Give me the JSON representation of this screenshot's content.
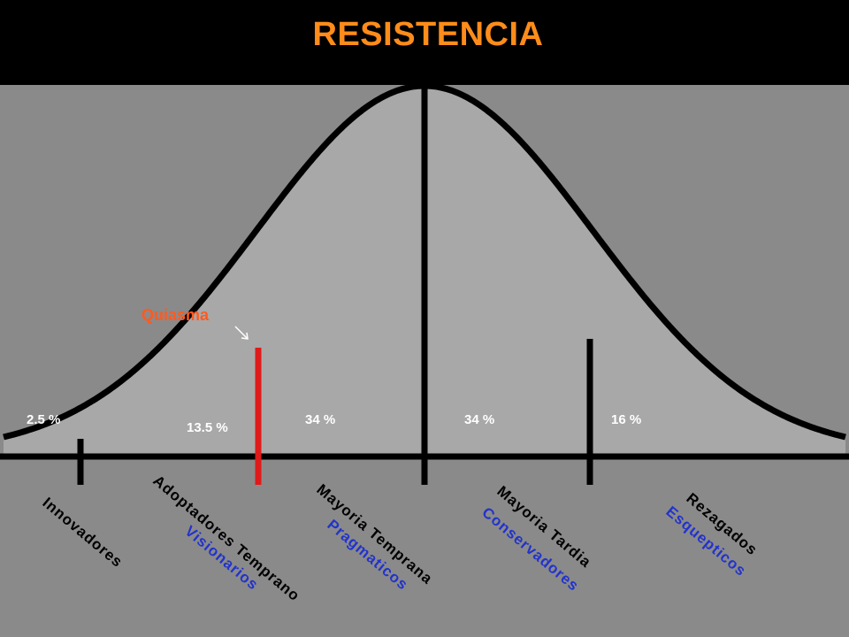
{
  "header": {
    "title": "RESISTENCIA"
  },
  "annotation": {
    "quiasma": "Quiasma"
  },
  "percentages": [
    "2.5 %",
    "13.5 %",
    "34 %",
    "34 %",
    "16 %"
  ],
  "segments": [
    {
      "label": "Innovadores",
      "sublabel": ""
    },
    {
      "label": "Adoptadores Temprano",
      "sublabel": "Visionarios"
    },
    {
      "label": "Mayoria Temprana",
      "sublabel": "Pragmaticos"
    },
    {
      "label": "Mayoria Tardia",
      "sublabel": "Conservadores"
    },
    {
      "label": "Rezagados",
      "sublabel": "Esquepticos"
    }
  ],
  "colors": {
    "title": "#ff8c1a",
    "quiasma": "#ff5a1f",
    "sublabel": "#2233cc",
    "highlight_line": "#e01a1a",
    "background": "#8a8a8a",
    "curve_fill": "#a8a8a8"
  }
}
